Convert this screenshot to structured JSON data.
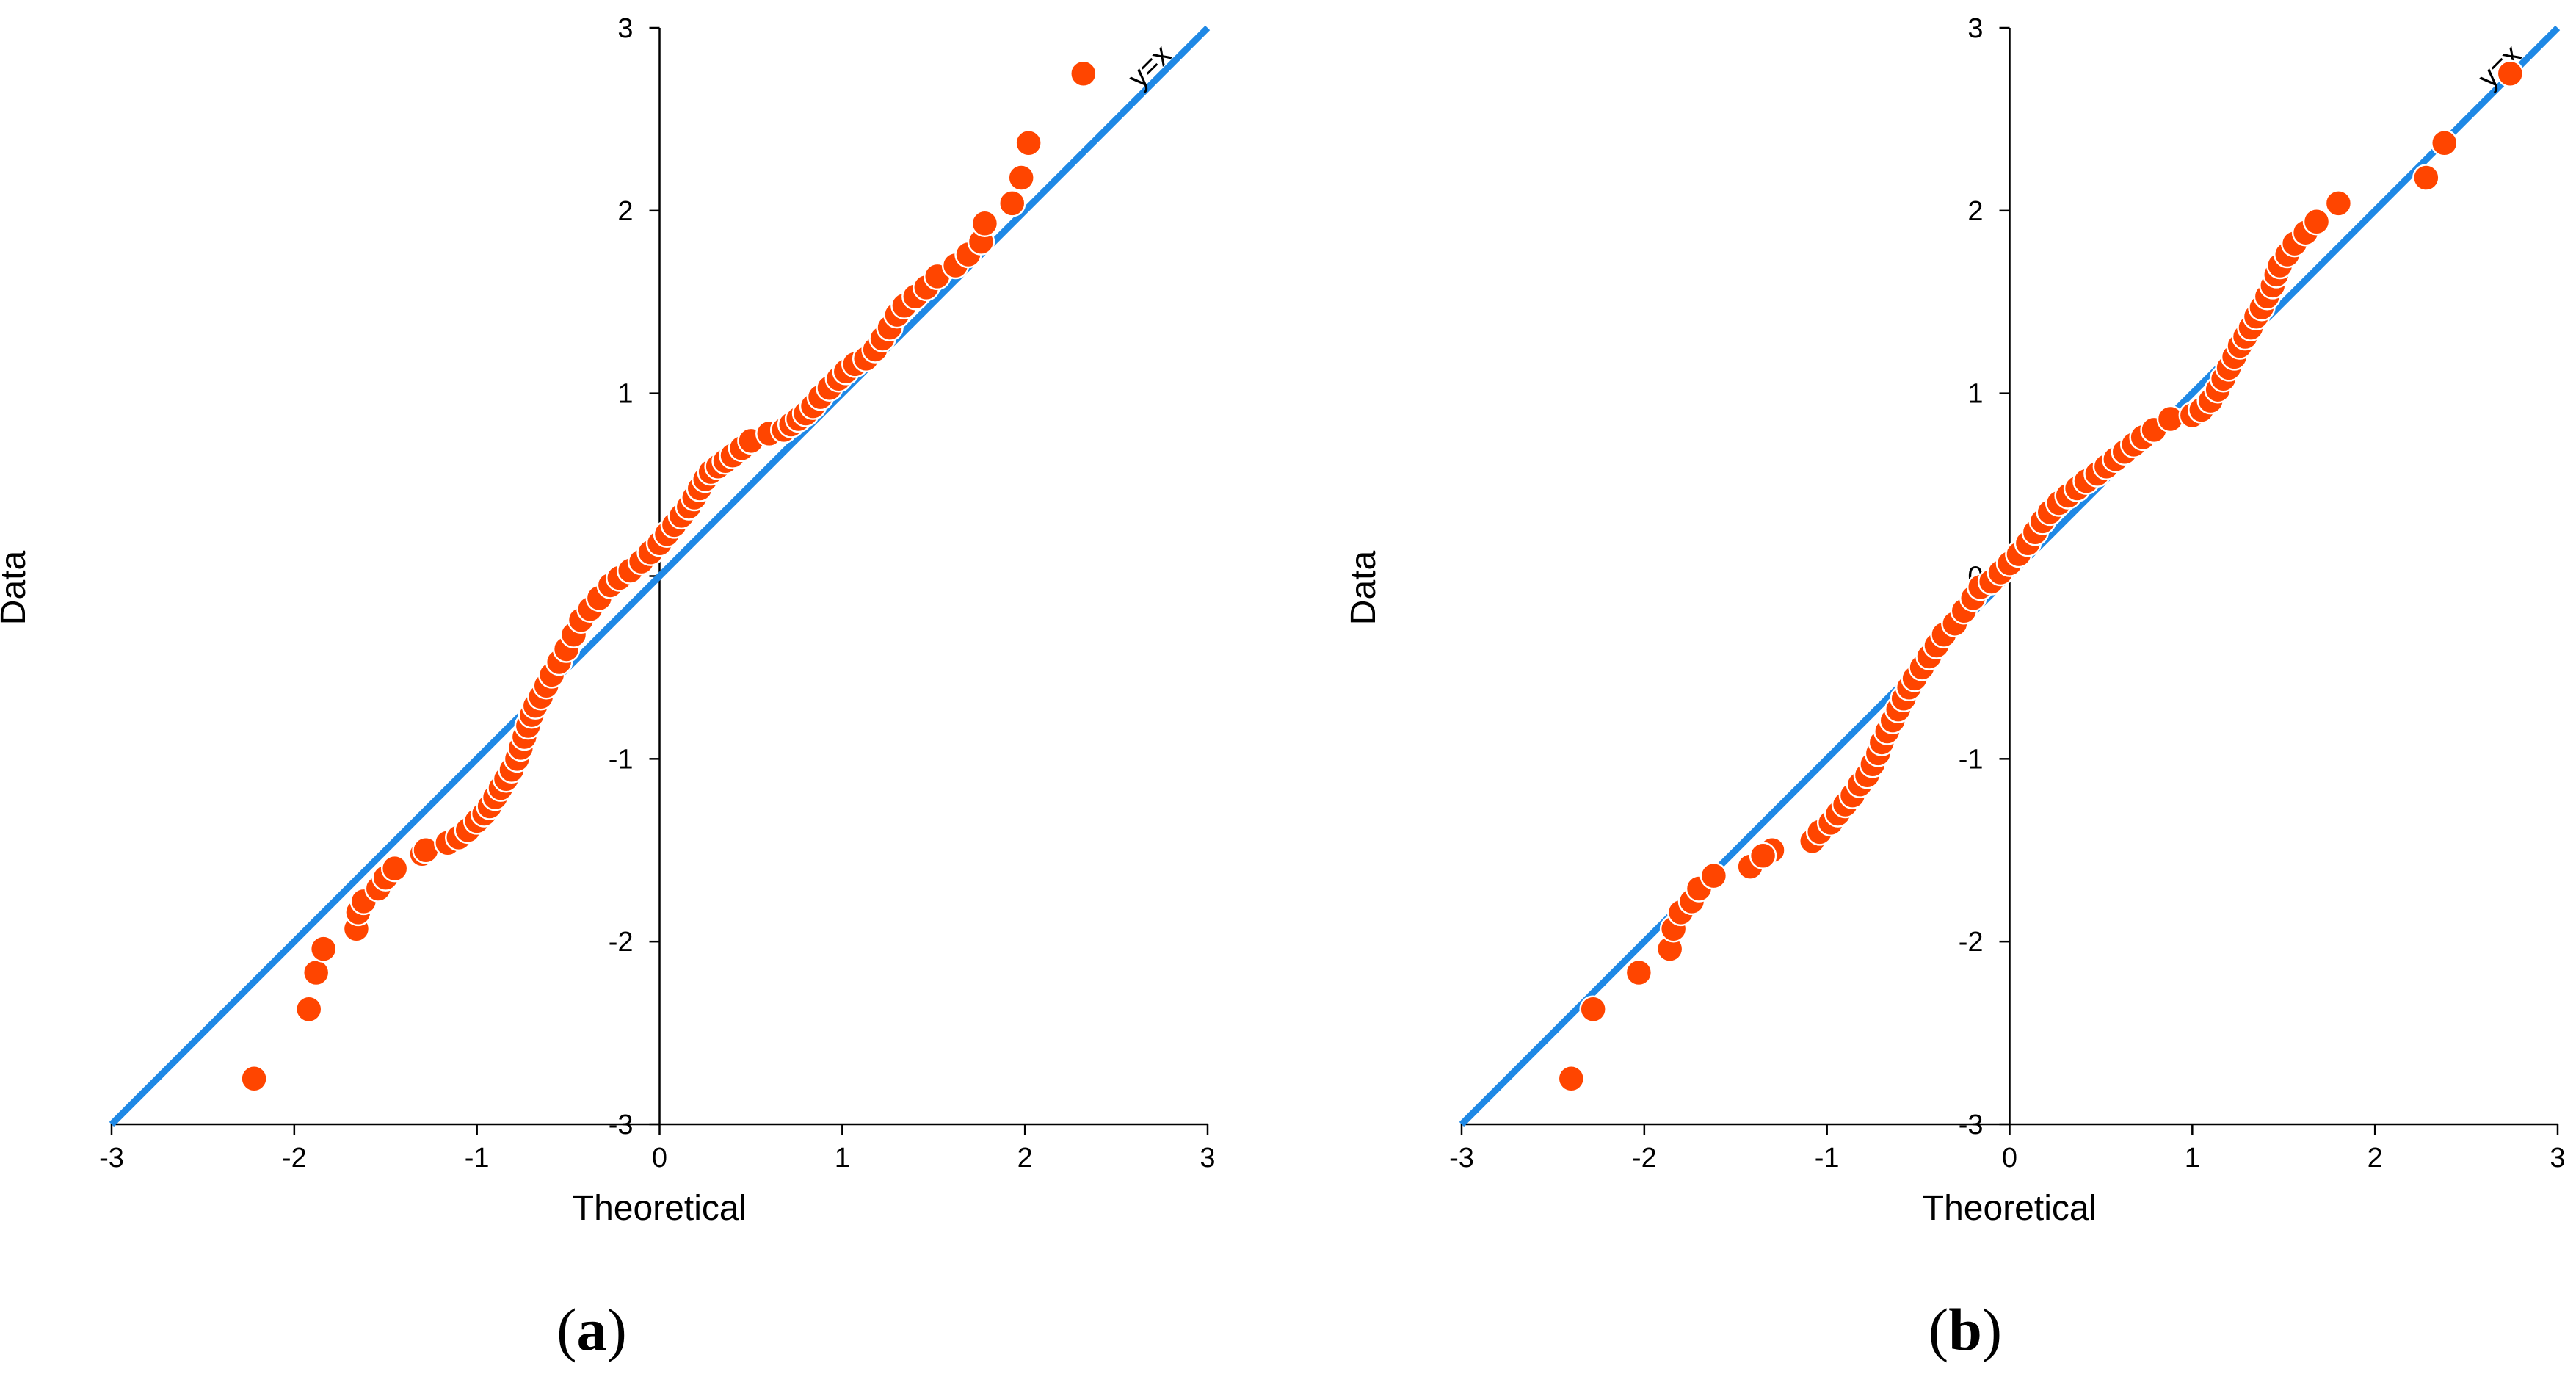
{
  "chart_data": [
    {
      "type": "scatter",
      "panel_label": "a",
      "xlabel": "Theoretical",
      "ylabel": "Data",
      "xlim": [
        -3,
        3
      ],
      "ylim": [
        -3,
        3
      ],
      "xticks": [
        -3,
        -2,
        -1,
        0,
        1,
        2,
        3
      ],
      "yticks": [
        -3,
        -2,
        -1,
        0,
        1,
        2,
        3
      ],
      "reference_line": {
        "label": "y=x",
        "from": [
          -3,
          -3
        ],
        "to": [
          3,
          3
        ],
        "color": "#1E88E5"
      },
      "series": [
        {
          "name": "Data",
          "marker_color": "#FF4500",
          "points": [
            [
              -2.22,
              -2.75
            ],
            [
              -1.92,
              -2.37
            ],
            [
              -1.88,
              -2.17
            ],
            [
              -1.84,
              -2.04
            ],
            [
              -1.66,
              -1.93
            ],
            [
              -1.65,
              -1.84
            ],
            [
              -1.62,
              -1.78
            ],
            [
              -1.54,
              -1.71
            ],
            [
              -1.5,
              -1.65
            ],
            [
              -1.45,
              -1.6
            ],
            [
              -1.3,
              -1.52
            ],
            [
              -1.28,
              -1.5
            ],
            [
              -1.16,
              -1.46
            ],
            [
              -1.1,
              -1.43
            ],
            [
              -1.05,
              -1.39
            ],
            [
              -1.0,
              -1.34
            ],
            [
              -0.96,
              -1.3
            ],
            [
              -0.93,
              -1.26
            ],
            [
              -0.9,
              -1.21
            ],
            [
              -0.87,
              -1.16
            ],
            [
              -0.84,
              -1.11
            ],
            [
              -0.81,
              -1.06
            ],
            [
              -0.78,
              -1.0
            ],
            [
              -0.76,
              -0.94
            ],
            [
              -0.74,
              -0.88
            ],
            [
              -0.72,
              -0.82
            ],
            [
              -0.7,
              -0.76
            ],
            [
              -0.68,
              -0.71
            ],
            [
              -0.65,
              -0.66
            ],
            [
              -0.62,
              -0.6
            ],
            [
              -0.59,
              -0.54
            ],
            [
              -0.55,
              -0.47
            ],
            [
              -0.51,
              -0.4
            ],
            [
              -0.47,
              -0.32
            ],
            [
              -0.43,
              -0.24
            ],
            [
              -0.38,
              -0.18
            ],
            [
              -0.33,
              -0.12
            ],
            [
              -0.27,
              -0.05
            ],
            [
              -0.22,
              -0.01
            ],
            [
              -0.16,
              0.03
            ],
            [
              -0.1,
              0.08
            ],
            [
              -0.05,
              0.13
            ],
            [
              0.0,
              0.18
            ],
            [
              0.04,
              0.23
            ],
            [
              0.08,
              0.28
            ],
            [
              0.12,
              0.33
            ],
            [
              0.16,
              0.38
            ],
            [
              0.19,
              0.43
            ],
            [
              0.22,
              0.48
            ],
            [
              0.25,
              0.53
            ],
            [
              0.28,
              0.57
            ],
            [
              0.32,
              0.6
            ],
            [
              0.36,
              0.63
            ],
            [
              0.4,
              0.66
            ],
            [
              0.45,
              0.7
            ],
            [
              0.5,
              0.74
            ],
            [
              0.6,
              0.78
            ],
            [
              0.68,
              0.8
            ],
            [
              0.72,
              0.83
            ],
            [
              0.76,
              0.86
            ],
            [
              0.8,
              0.89
            ],
            [
              0.84,
              0.93
            ],
            [
              0.88,
              0.98
            ],
            [
              0.93,
              1.03
            ],
            [
              0.98,
              1.08
            ],
            [
              1.02,
              1.12
            ],
            [
              1.07,
              1.16
            ],
            [
              1.13,
              1.19
            ],
            [
              1.18,
              1.24
            ],
            [
              1.22,
              1.3
            ],
            [
              1.26,
              1.36
            ],
            [
              1.3,
              1.43
            ],
            [
              1.34,
              1.48
            ],
            [
              1.4,
              1.53
            ],
            [
              1.46,
              1.58
            ],
            [
              1.52,
              1.64
            ],
            [
              1.62,
              1.7
            ],
            [
              1.69,
              1.76
            ],
            [
              1.76,
              1.83
            ],
            [
              1.78,
              1.93
            ],
            [
              1.93,
              2.04
            ],
            [
              1.98,
              2.18
            ],
            [
              2.02,
              2.37
            ],
            [
              2.32,
              2.75
            ]
          ]
        }
      ]
    },
    {
      "type": "scatter",
      "panel_label": "b",
      "xlabel": "Theoretical",
      "ylabel": "Data",
      "xlim": [
        -3,
        3
      ],
      "ylim": [
        -3,
        3
      ],
      "xticks": [
        -3,
        -2,
        -1,
        0,
        1,
        2,
        3
      ],
      "yticks": [
        -3,
        -2,
        -1,
        0,
        1,
        2,
        3
      ],
      "reference_line": {
        "label": "y=x",
        "from": [
          -3,
          -3
        ],
        "to": [
          3,
          3
        ],
        "color": "#1E88E5"
      },
      "series": [
        {
          "name": "Data",
          "marker_color": "#FF4500",
          "points": [
            [
              -2.4,
              -2.75
            ],
            [
              -2.28,
              -2.37
            ],
            [
              -2.03,
              -2.17
            ],
            [
              -1.86,
              -2.04
            ],
            [
              -1.84,
              -1.93
            ],
            [
              -1.8,
              -1.84
            ],
            [
              -1.74,
              -1.78
            ],
            [
              -1.7,
              -1.71
            ],
            [
              -1.62,
              -1.64
            ],
            [
              -1.42,
              -1.59
            ],
            [
              -1.3,
              -1.5
            ],
            [
              -1.35,
              -1.53
            ],
            [
              -1.08,
              -1.45
            ],
            [
              -1.04,
              -1.4
            ],
            [
              -0.98,
              -1.35
            ],
            [
              -0.94,
              -1.3
            ],
            [
              -0.9,
              -1.25
            ],
            [
              -0.86,
              -1.2
            ],
            [
              -0.82,
              -1.14
            ],
            [
              -0.78,
              -1.09
            ],
            [
              -0.75,
              -1.03
            ],
            [
              -0.72,
              -0.97
            ],
            [
              -0.7,
              -0.91
            ],
            [
              -0.67,
              -0.85
            ],
            [
              -0.64,
              -0.79
            ],
            [
              -0.61,
              -0.73
            ],
            [
              -0.58,
              -0.67
            ],
            [
              -0.55,
              -0.61
            ],
            [
              -0.52,
              -0.56
            ],
            [
              -0.48,
              -0.5
            ],
            [
              -0.44,
              -0.44
            ],
            [
              -0.4,
              -0.38
            ],
            [
              -0.36,
              -0.32
            ],
            [
              -0.3,
              -0.26
            ],
            [
              -0.25,
              -0.19
            ],
            [
              -0.2,
              -0.12
            ],
            [
              -0.16,
              -0.06
            ],
            [
              -0.1,
              -0.03
            ],
            [
              -0.05,
              0.02
            ],
            [
              0.0,
              0.07
            ],
            [
              0.05,
              0.12
            ],
            [
              0.1,
              0.18
            ],
            [
              0.14,
              0.24
            ],
            [
              0.18,
              0.3
            ],
            [
              0.22,
              0.35
            ],
            [
              0.27,
              0.4
            ],
            [
              0.32,
              0.44
            ],
            [
              0.37,
              0.48
            ],
            [
              0.42,
              0.52
            ],
            [
              0.48,
              0.56
            ],
            [
              0.53,
              0.6
            ],
            [
              0.58,
              0.64
            ],
            [
              0.63,
              0.68
            ],
            [
              0.68,
              0.72
            ],
            [
              0.73,
              0.76
            ],
            [
              0.79,
              0.8
            ],
            [
              0.88,
              0.86
            ],
            [
              1.0,
              0.88
            ],
            [
              1.05,
              0.91
            ],
            [
              1.1,
              0.96
            ],
            [
              1.14,
              1.02
            ],
            [
              1.17,
              1.08
            ],
            [
              1.2,
              1.14
            ],
            [
              1.23,
              1.2
            ],
            [
              1.26,
              1.26
            ],
            [
              1.29,
              1.31
            ],
            [
              1.32,
              1.36
            ],
            [
              1.35,
              1.42
            ],
            [
              1.38,
              1.47
            ],
            [
              1.41,
              1.53
            ],
            [
              1.44,
              1.59
            ],
            [
              1.46,
              1.65
            ],
            [
              1.48,
              1.7
            ],
            [
              1.52,
              1.76
            ],
            [
              1.56,
              1.82
            ],
            [
              1.62,
              1.88
            ],
            [
              1.68,
              1.94
            ],
            [
              1.8,
              2.04
            ],
            [
              2.28,
              2.18
            ],
            [
              2.38,
              2.37
            ],
            [
              2.74,
              2.75
            ]
          ]
        }
      ]
    }
  ]
}
